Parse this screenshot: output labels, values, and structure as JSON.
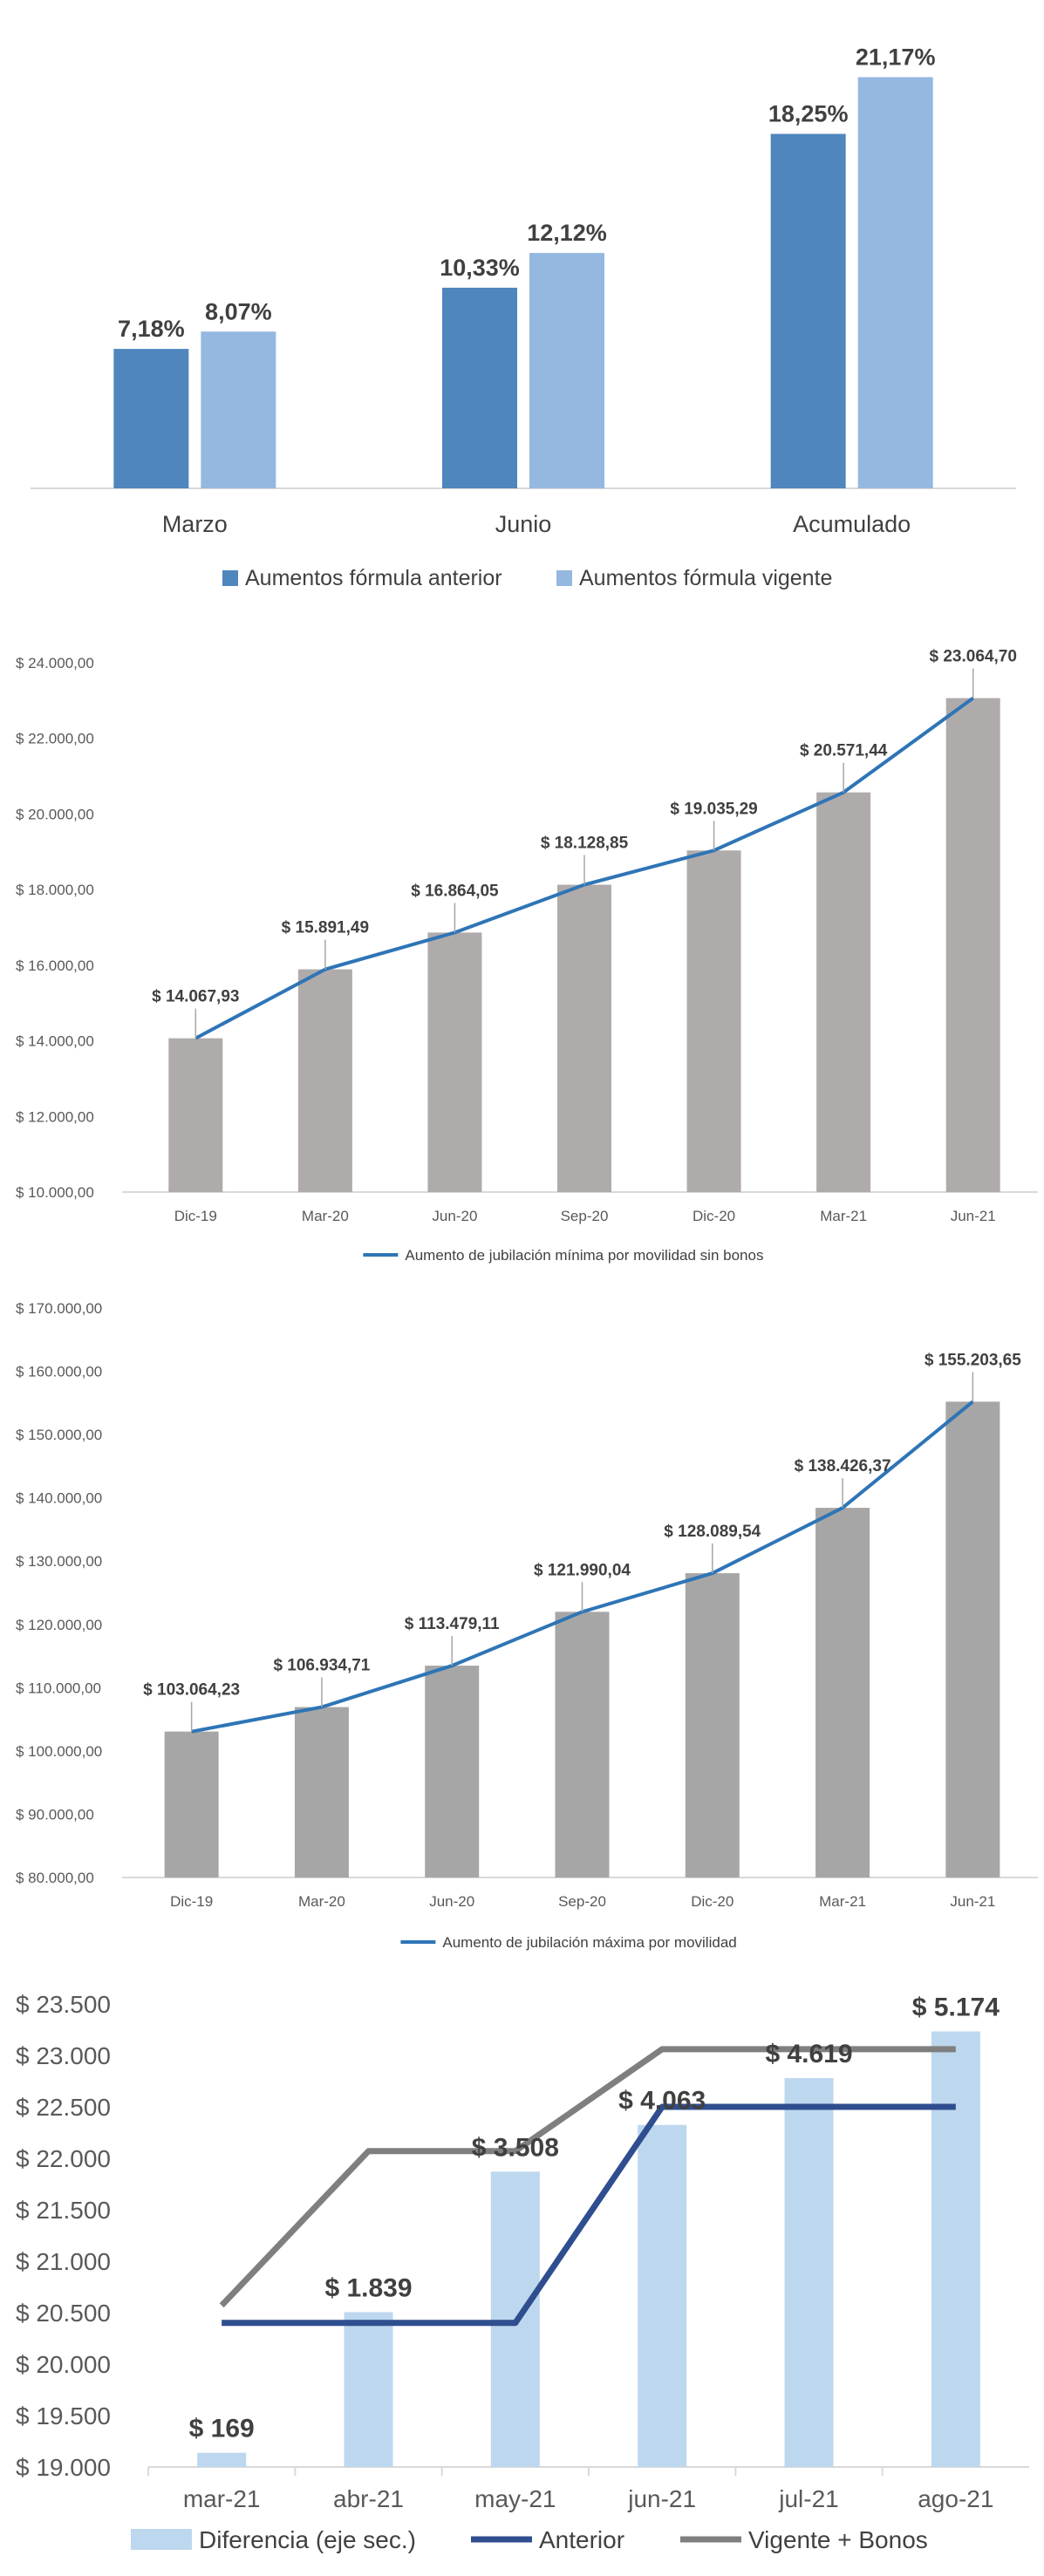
{
  "chart_data": [
    {
      "type": "bar",
      "categories": [
        "Marzo",
        "Junio",
        "Acumulado"
      ],
      "series": [
        {
          "name": "Aumentos fórmula anterior",
          "values": [
            7.18,
            10.33,
            18.25
          ],
          "labels": [
            "7,18%",
            "10,33%",
            "18,25%"
          ],
          "color": "#4f86be"
        },
        {
          "name": "Aumentos fórmula vigente",
          "values": [
            8.07,
            12.12,
            21.17
          ],
          "labels": [
            "8,07%",
            "12,12%",
            "21,17%"
          ],
          "color": "#95b8e0"
        }
      ],
      "ylim": [
        0,
        22
      ]
    },
    {
      "type": "bar",
      "categories": [
        "Dic-19",
        "Mar-20",
        "Jun-20",
        "Sep-20",
        "Dic-20",
        "Mar-21",
        "Jun-21"
      ],
      "values": [
        14067.93,
        15891.49,
        16864.05,
        18128.85,
        19035.29,
        20571.44,
        23064.7
      ],
      "value_labels": [
        "$ 14.067,93",
        "$ 15.891,49",
        "$ 16.864,05",
        "$ 18.128,85",
        "$ 19.035,29",
        "$ 20.571,44",
        "$ 23.064,70"
      ],
      "yticks": [
        10000,
        12000,
        14000,
        16000,
        18000,
        20000,
        22000,
        24000
      ],
      "ytick_labels": [
        "$ 10.000,00",
        "$ 12.000,00",
        "$ 14.000,00",
        "$ 16.000,00",
        "$ 18.000,00",
        "$ 20.000,00",
        "$ 22.000,00",
        "$ 24.000,00"
      ],
      "ylim": [
        10000,
        24000
      ],
      "bar_color": "#b0abab",
      "line_color": "#2e75b6",
      "legend": "Aumento de jubilación mínima por movilidad sin bonos"
    },
    {
      "type": "bar",
      "categories": [
        "Dic-19",
        "Mar-20",
        "Jun-20",
        "Sep-20",
        "Dic-20",
        "Mar-21",
        "Jun-21"
      ],
      "values": [
        103064.23,
        106934.71,
        113479.11,
        121990.04,
        128089.54,
        138426.37,
        155203.65
      ],
      "value_labels": [
        "$ 103.064,23",
        "$ 106.934,71",
        "$ 113.479,11",
        "$ 121.990,04",
        "$ 128.089,54",
        "$ 138.426,37",
        "$ 155.203,65"
      ],
      "yticks": [
        80000,
        90000,
        100000,
        110000,
        120000,
        130000,
        140000,
        150000,
        160000,
        170000
      ],
      "ytick_labels": [
        "$ 80.000,00",
        "$ 90.000,00",
        "$ 100.000,00",
        "$ 110.000,00",
        "$ 120.000,00",
        "$ 130.000,00",
        "$ 140.000,00",
        "$ 150.000,00",
        "$ 160.000,00",
        "$ 170.000,00"
      ],
      "ylim": [
        80000,
        170000
      ],
      "bar_color": "#a6a6a6",
      "line_color": "#2e75b6",
      "legend": "Aumento de jubilación máxima por movilidad"
    },
    {
      "type": "bar",
      "categories": [
        "mar-21",
        "abr-21",
        "may-21",
        "jun-21",
        "jul-21",
        "ago-21"
      ],
      "bars": {
        "name": "Diferencia (eje sec.)",
        "values": [
          169,
          1839,
          3508,
          4063,
          4619,
          5174
        ],
        "labels": [
          "$ 169",
          "$ 1.839",
          "$ 3.508",
          "$ 4.063",
          "$ 4.619",
          "$ 5.174"
        ],
        "color": "#bdd7ee",
        "ylim": [
          0,
          5500
        ]
      },
      "lines": [
        {
          "name": "Anterior",
          "values": [
            20400,
            20400,
            20400,
            22500,
            22500,
            22500
          ],
          "color": "#2f4e8f"
        },
        {
          "name": "Vigente + Bonos",
          "values": [
            20570,
            22070,
            22070,
            23060,
            23060,
            23060
          ],
          "color": "#7f7f7f"
        }
      ],
      "yticks": [
        19000,
        19500,
        20000,
        20500,
        21000,
        21500,
        22000,
        22500,
        23000,
        23500
      ],
      "ytick_labels": [
        "$ 19.000",
        "$ 19.500",
        "$ 20.000",
        "$ 20.500",
        "$ 21.000",
        "$ 21.500",
        "$ 22.000",
        "$ 22.500",
        "$ 23.000",
        "$ 23.500"
      ],
      "ylim": [
        19000,
        23500
      ]
    }
  ]
}
